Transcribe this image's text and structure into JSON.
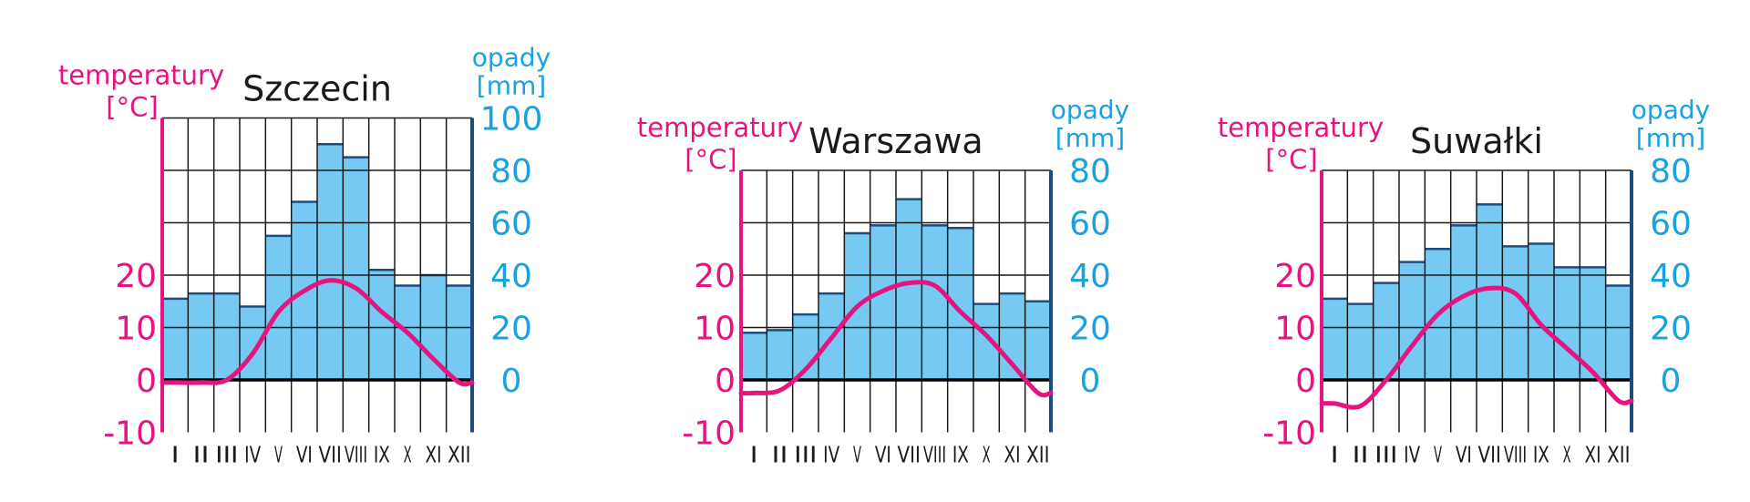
{
  "colors": {
    "temperature": "#e5147f",
    "precipitation_text": "#1aa2e0",
    "bar_fill": "#75c9f3",
    "bar_top": "#1d4d7c",
    "right_axis": "#1d4d7c",
    "grid": "#1a1a1a"
  },
  "chart_data": [
    {
      "type": "bar+line",
      "title": "Szczecin",
      "categories": [
        "I",
        "II",
        "III",
        "IV",
        "V",
        "VI",
        "VII",
        "VIII",
        "IX",
        "X",
        "XI",
        "XII"
      ],
      "left_axis": {
        "label_line1": "temperatury",
        "label_line2": "[°C]",
        "ticks": [
          "20",
          "10",
          "0",
          "-10"
        ],
        "ylim": [
          -10,
          30
        ]
      },
      "right_axis": {
        "label_line1": "opady",
        "label_line2": "[mm]",
        "ticks": [
          "100",
          "80",
          "60",
          "40",
          "20",
          "0"
        ],
        "ylim": [
          -20,
          100
        ]
      },
      "series": [
        {
          "values": [
            31,
            33,
            33,
            28,
            55,
            68,
            90,
            85,
            42,
            36,
            40,
            36
          ]
        },
        {
          "values": [
            -0.5,
            -0.5,
            0,
            5,
            13,
            17,
            19,
            17.5,
            13,
            9,
            4,
            -0.5
          ]
        }
      ]
    },
    {
      "type": "bar+line",
      "title": "Warszawa",
      "categories": [
        "I",
        "II",
        "III",
        "IV",
        "V",
        "VI",
        "VII",
        "VIII",
        "IX",
        "X",
        "XI",
        "XII"
      ],
      "left_axis": {
        "label_line1": "temperatury",
        "label_line2": "[°C]",
        "ticks": [
          "20",
          "10",
          "0",
          "-10"
        ],
        "ylim": [
          -10,
          30
        ]
      },
      "right_axis": {
        "label_line1": "opady",
        "label_line2": "[mm]",
        "ticks": [
          "80",
          "60",
          "40",
          "20",
          "0"
        ],
        "ylim": [
          -20,
          80
        ]
      },
      "series": [
        {
          "values": [
            18,
            19,
            25,
            33,
            56,
            59,
            69,
            59,
            58,
            29,
            33,
            30
          ]
        },
        {
          "values": [
            -2.5,
            -2,
            2,
            8,
            14,
            17,
            18.5,
            18,
            13,
            8.5,
            3,
            -2.5
          ]
        }
      ]
    },
    {
      "type": "bar+line",
      "title": "Suwałki",
      "categories": [
        "I",
        "II",
        "III",
        "IV",
        "V",
        "VI",
        "VII",
        "VIII",
        "IX",
        "X",
        "XI",
        "XII"
      ],
      "left_axis": {
        "label_line1": "temperatury",
        "label_line2": "[°C]",
        "ticks": [
          "20",
          "10",
          "0",
          "-10"
        ],
        "ylim": [
          -10,
          30
        ]
      },
      "right_axis": {
        "label_line1": "opady",
        "label_line2": "[mm]",
        "ticks": [
          "80",
          "60",
          "40",
          "20",
          "0"
        ],
        "ylim": [
          -20,
          80
        ]
      },
      "series": [
        {
          "values": [
            31,
            29,
            37,
            45,
            50,
            59,
            67,
            51,
            52,
            43,
            43,
            36
          ]
        },
        {
          "values": [
            -4.5,
            -5,
            0,
            6.5,
            12.5,
            16,
            17.5,
            16.5,
            10.5,
            6,
            1.5,
            -4
          ]
        }
      ]
    }
  ]
}
